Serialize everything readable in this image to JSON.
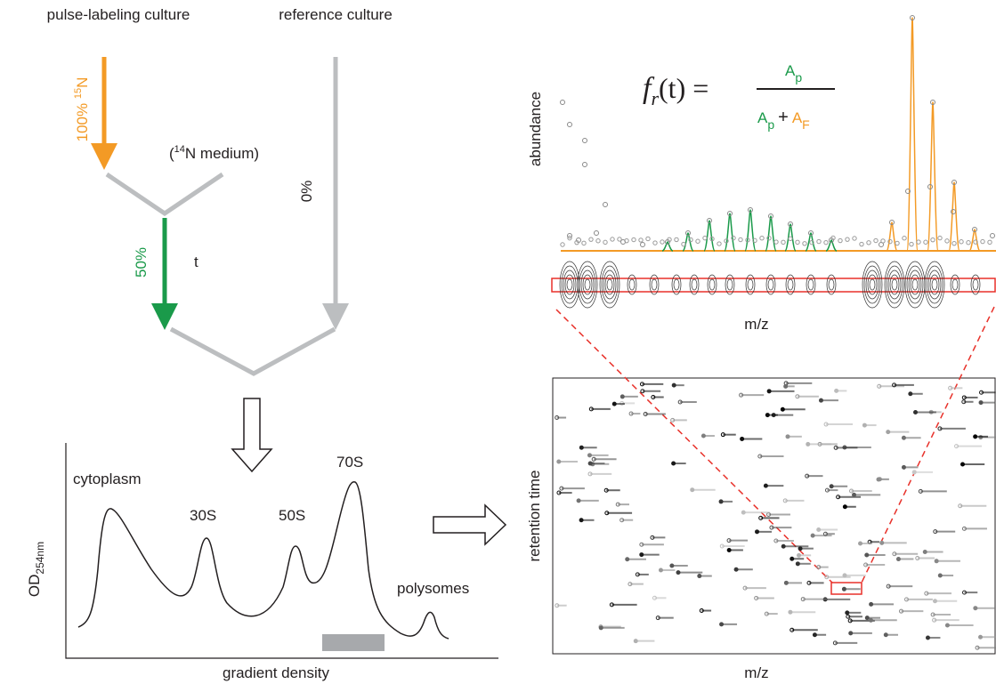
{
  "labeling_scheme": {
    "pulse_culture": "pulse-labeling culture",
    "reference_culture": "reference culture",
    "pulse_fraction": {
      "percent": "100%",
      "isotope_mass": "15",
      "element": "N"
    },
    "medium": {
      "open": "(",
      "isotope_mass": "14",
      "rest": "N medium)"
    },
    "reference_fraction": "0%",
    "mix_fraction": "50%",
    "time": "t"
  },
  "gradient_profile": {
    "peaks": [
      "cytoplasm",
      "30S",
      "50S",
      "70S",
      "polysomes"
    ],
    "y_label": {
      "base": "OD",
      "sub": "254nm"
    },
    "x_label": "gradient density"
  },
  "mass_spectrum": {
    "formula": {
      "lhs": "f",
      "lhs_sub": "r",
      "lhs_arg": "(t) =",
      "num": "A",
      "num_sub": "p",
      "den1": "A",
      "den1_sub": "p",
      "plus": "+",
      "den2": "A",
      "den2_sub": "F"
    },
    "y_label": "abundance",
    "x_label": "m/z"
  },
  "lc_ms_map": {
    "y_label": "retention time",
    "x_label": "m/z"
  }
}
